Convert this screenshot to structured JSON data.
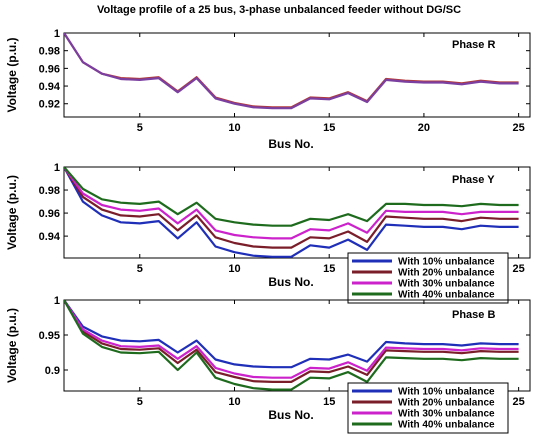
{
  "figure_title": "Voltage profile of a 25 bus, 3-phase unbalanced feeder without DG/SC",
  "chart_data": [
    {
      "type": "line",
      "panel_label": "Phase R",
      "xlabel": "Bus No.",
      "ylabel": "Voltage (p.u.)",
      "xlim": [
        1,
        25.6
      ],
      "ylim": [
        0.905,
        1.0
      ],
      "xticks": [
        "5",
        "10",
        "15",
        "20",
        "25"
      ],
      "yticks": [
        "0.92",
        "0.94",
        "0.96",
        "0.98",
        "1"
      ],
      "grid": false,
      "legend": "none",
      "x": [
        1,
        2,
        3,
        4,
        5,
        6,
        7,
        8,
        9,
        10,
        11,
        12,
        13,
        14,
        15,
        16,
        17,
        18,
        19,
        20,
        21,
        22,
        23,
        24,
        25
      ],
      "series": [
        {
          "color": "#b23a3a",
          "values": [
            1.0,
            0.967,
            0.954,
            0.949,
            0.948,
            0.95,
            0.934,
            0.95,
            0.927,
            0.921,
            0.917,
            0.916,
            0.916,
            0.927,
            0.926,
            0.933,
            0.923,
            0.948,
            0.946,
            0.945,
            0.945,
            0.943,
            0.946,
            0.944,
            0.944
          ]
        },
        {
          "color": "#7a3fa0",
          "values": [
            1.0,
            0.967,
            0.954,
            0.948,
            0.947,
            0.949,
            0.933,
            0.949,
            0.926,
            0.92,
            0.916,
            0.915,
            0.915,
            0.926,
            0.925,
            0.932,
            0.922,
            0.947,
            0.945,
            0.944,
            0.944,
            0.942,
            0.945,
            0.943,
            0.943
          ]
        }
      ]
    },
    {
      "type": "line",
      "panel_label": "Phase Y",
      "xlabel": "Bus No.",
      "ylabel": "Voltage (p.u.)",
      "xlim": [
        1,
        25.6
      ],
      "ylim": [
        0.921,
        1.0
      ],
      "xticks": [
        "5",
        "10",
        "15",
        "20",
        "25"
      ],
      "yticks": [
        "0.94",
        "0.96",
        "0.98",
        "1"
      ],
      "grid": false,
      "legend": "bottom-right",
      "x": [
        1,
        2,
        3,
        4,
        5,
        6,
        7,
        8,
        9,
        10,
        11,
        12,
        13,
        14,
        15,
        16,
        17,
        18,
        19,
        20,
        21,
        22,
        23,
        24,
        25
      ],
      "series": [
        {
          "name": "With 10% unbalance",
          "color": "#1f2fb8",
          "values": [
            1.0,
            0.97,
            0.958,
            0.952,
            0.951,
            0.953,
            0.938,
            0.952,
            0.931,
            0.926,
            0.923,
            0.922,
            0.922,
            0.932,
            0.93,
            0.937,
            0.928,
            0.95,
            0.949,
            0.948,
            0.948,
            0.946,
            0.949,
            0.948,
            0.948
          ]
        },
        {
          "name": "With 20% unbalance",
          "color": "#7a1e2a",
          "values": [
            1.0,
            0.974,
            0.963,
            0.958,
            0.957,
            0.959,
            0.945,
            0.958,
            0.939,
            0.934,
            0.931,
            0.93,
            0.93,
            0.939,
            0.938,
            0.944,
            0.935,
            0.957,
            0.956,
            0.955,
            0.955,
            0.953,
            0.956,
            0.955,
            0.955
          ]
        },
        {
          "name": "With 30% unbalance",
          "color": "#cc22cc",
          "values": [
            1.0,
            0.977,
            0.967,
            0.963,
            0.962,
            0.964,
            0.951,
            0.963,
            0.945,
            0.941,
            0.939,
            0.938,
            0.938,
            0.946,
            0.945,
            0.951,
            0.943,
            0.962,
            0.961,
            0.961,
            0.961,
            0.959,
            0.961,
            0.961,
            0.961
          ]
        },
        {
          "name": "With 40% unbalance",
          "color": "#1e6b1e",
          "values": [
            1.0,
            0.981,
            0.972,
            0.969,
            0.968,
            0.97,
            0.959,
            0.969,
            0.955,
            0.952,
            0.95,
            0.949,
            0.949,
            0.955,
            0.954,
            0.959,
            0.953,
            0.968,
            0.968,
            0.967,
            0.967,
            0.966,
            0.968,
            0.967,
            0.967
          ]
        }
      ]
    },
    {
      "type": "line",
      "panel_label": "Phase B",
      "xlabel": "Bus No.",
      "ylabel": "Voltage (p.u.)",
      "xlim": [
        1,
        25.6
      ],
      "ylim": [
        0.87,
        1.0
      ],
      "xticks": [
        "5",
        "10",
        "15",
        "20",
        "25"
      ],
      "yticks": [
        "0.9",
        "0.95",
        "1"
      ],
      "grid": false,
      "legend": "bottom-right",
      "x": [
        1,
        2,
        3,
        4,
        5,
        6,
        7,
        8,
        9,
        10,
        11,
        12,
        13,
        14,
        15,
        16,
        17,
        18,
        19,
        20,
        21,
        22,
        23,
        24,
        25
      ],
      "series": [
        {
          "name": "With 10% unbalance",
          "color": "#1f2fb8",
          "values": [
            1.0,
            0.962,
            0.948,
            0.942,
            0.941,
            0.943,
            0.925,
            0.942,
            0.915,
            0.908,
            0.905,
            0.904,
            0.904,
            0.916,
            0.915,
            0.922,
            0.912,
            0.94,
            0.938,
            0.937,
            0.937,
            0.935,
            0.938,
            0.937,
            0.937
          ]
        },
        {
          "name": "With 20% unbalance",
          "color": "#7a1e2a",
          "values": [
            1.0,
            0.955,
            0.938,
            0.93,
            0.929,
            0.931,
            0.91,
            0.929,
            0.897,
            0.89,
            0.884,
            0.883,
            0.883,
            0.898,
            0.897,
            0.905,
            0.893,
            0.928,
            0.927,
            0.926,
            0.926,
            0.924,
            0.927,
            0.926,
            0.926
          ]
        },
        {
          "name": "With 30% unbalance",
          "color": "#cc22cc",
          "values": [
            1.0,
            0.958,
            0.942,
            0.934,
            0.933,
            0.935,
            0.916,
            0.934,
            0.903,
            0.895,
            0.89,
            0.889,
            0.889,
            0.903,
            0.902,
            0.911,
            0.899,
            0.932,
            0.931,
            0.93,
            0.93,
            0.928,
            0.931,
            0.93,
            0.93
          ]
        },
        {
          "name": "With 40% unbalance",
          "color": "#1e6b1e",
          "values": [
            1.0,
            0.952,
            0.933,
            0.925,
            0.924,
            0.926,
            0.9,
            0.925,
            0.889,
            0.88,
            0.874,
            0.872,
            0.872,
            0.889,
            0.888,
            0.897,
            0.883,
            0.918,
            0.917,
            0.916,
            0.916,
            0.914,
            0.917,
            0.916,
            0.916
          ]
        }
      ]
    }
  ]
}
